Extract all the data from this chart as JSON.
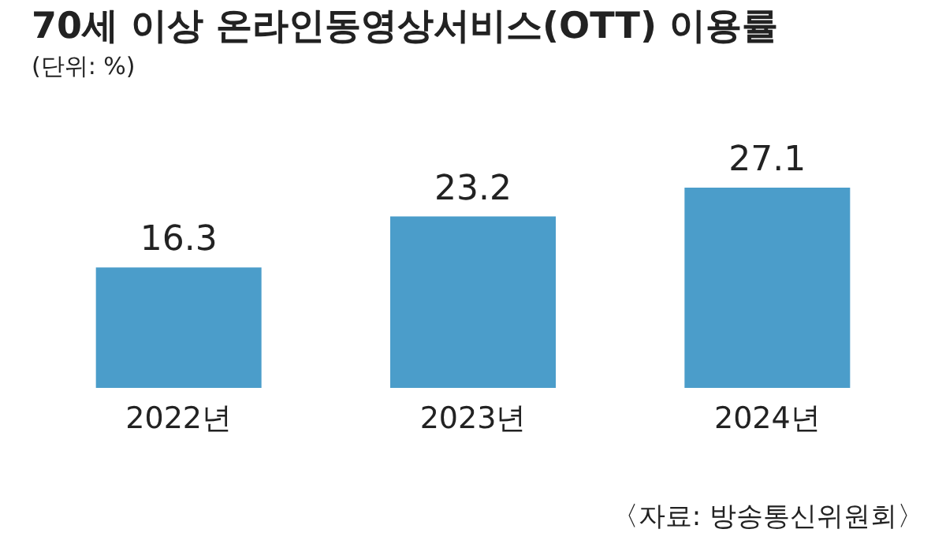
{
  "chart_data": {
    "type": "bar",
    "title": "70세 이상 온라인동영상서비스(OTT) 이용률",
    "subtitle": "(단위: %)",
    "categories": [
      "2022년",
      "2023년",
      "2024년"
    ],
    "values": [
      16.3,
      23.2,
      27.1
    ],
    "color": "#4b9dca",
    "data_labels": true,
    "annotations": [
      "〈자료: 방송통신위원회〉"
    ]
  }
}
